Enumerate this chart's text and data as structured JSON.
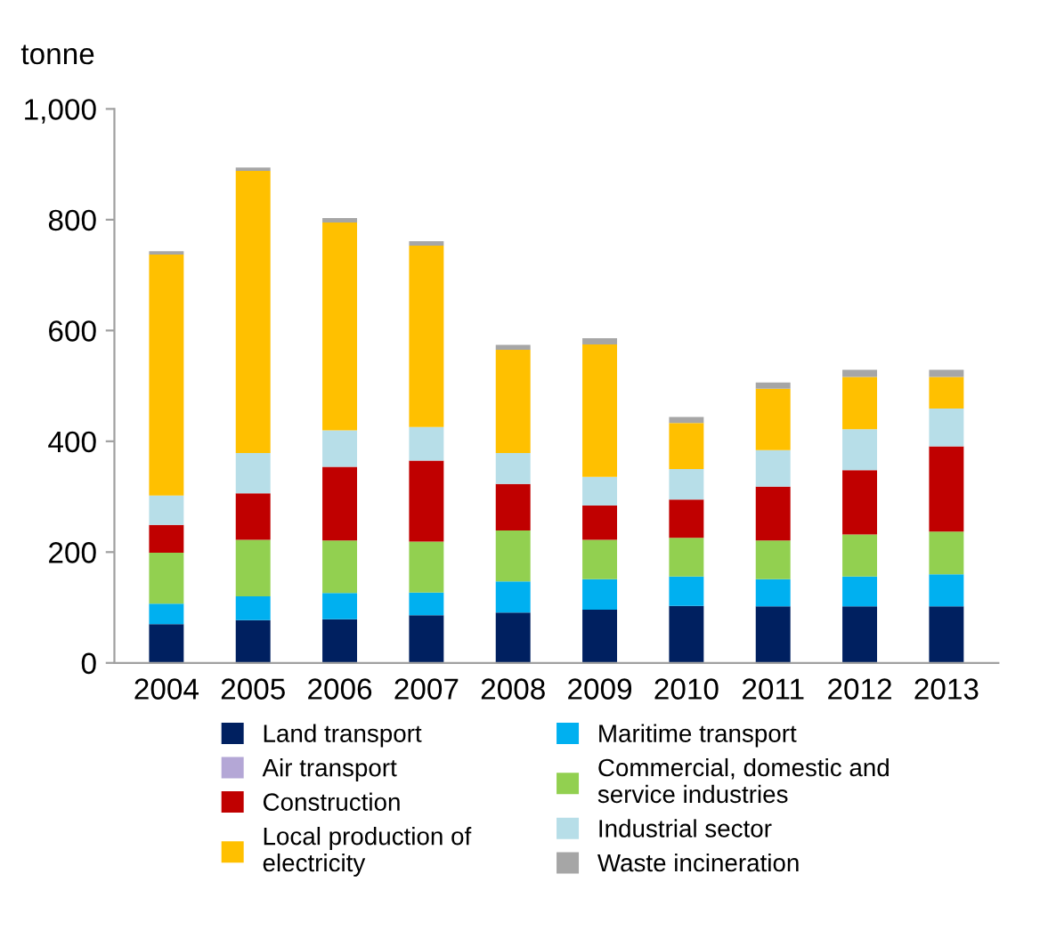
{
  "chart_data": {
    "type": "bar",
    "stacked": true,
    "ylabel": "tonne",
    "categories": [
      "2004",
      "2005",
      "2006",
      "2007",
      "2008",
      "2009",
      "2010",
      "2011",
      "2012",
      "2013"
    ],
    "series": [
      {
        "name": "Land transport",
        "color": "#002060",
        "values": [
          70,
          77,
          79,
          86,
          91,
          96,
          103,
          102,
          102,
          102
        ]
      },
      {
        "name": "Maritime transport",
        "color": "#00b0f0",
        "values": [
          37,
          43,
          47,
          41,
          56,
          55,
          53,
          49,
          54,
          58
        ]
      },
      {
        "name": "Air transport",
        "color": "#b4a7d6",
        "values": [
          0,
          0,
          0,
          0,
          0,
          0,
          0,
          0,
          0,
          0
        ]
      },
      {
        "name": "Commercial, domestic and\nservice industries",
        "color": "#92d050",
        "values": [
          92,
          102,
          95,
          92,
          92,
          71,
          70,
          70,
          76,
          77
        ]
      },
      {
        "name": "Construction",
        "color": "#c00000",
        "values": [
          50,
          84,
          133,
          146,
          84,
          62,
          69,
          97,
          116,
          154
        ]
      },
      {
        "name": "Industrial sector",
        "color": "#b7dee8",
        "values": [
          53,
          73,
          66,
          61,
          56,
          52,
          55,
          66,
          74,
          68
        ]
      },
      {
        "name": "Local production of\nelectricity",
        "color": "#ffc000",
        "values": [
          435,
          509,
          375,
          327,
          186,
          239,
          83,
          111,
          94,
          57
        ]
      },
      {
        "name": "Waste incineration",
        "color": "#a6a6a6",
        "values": [
          6,
          6,
          8,
          8,
          9,
          11,
          11,
          11,
          13,
          13
        ]
      }
    ],
    "ylim": [
      0,
      1000
    ],
    "yticks": [
      0,
      200,
      400,
      600,
      800,
      {
        "value": 1000,
        "label": "1,000"
      }
    ],
    "grid": false,
    "legend": "bottom"
  }
}
